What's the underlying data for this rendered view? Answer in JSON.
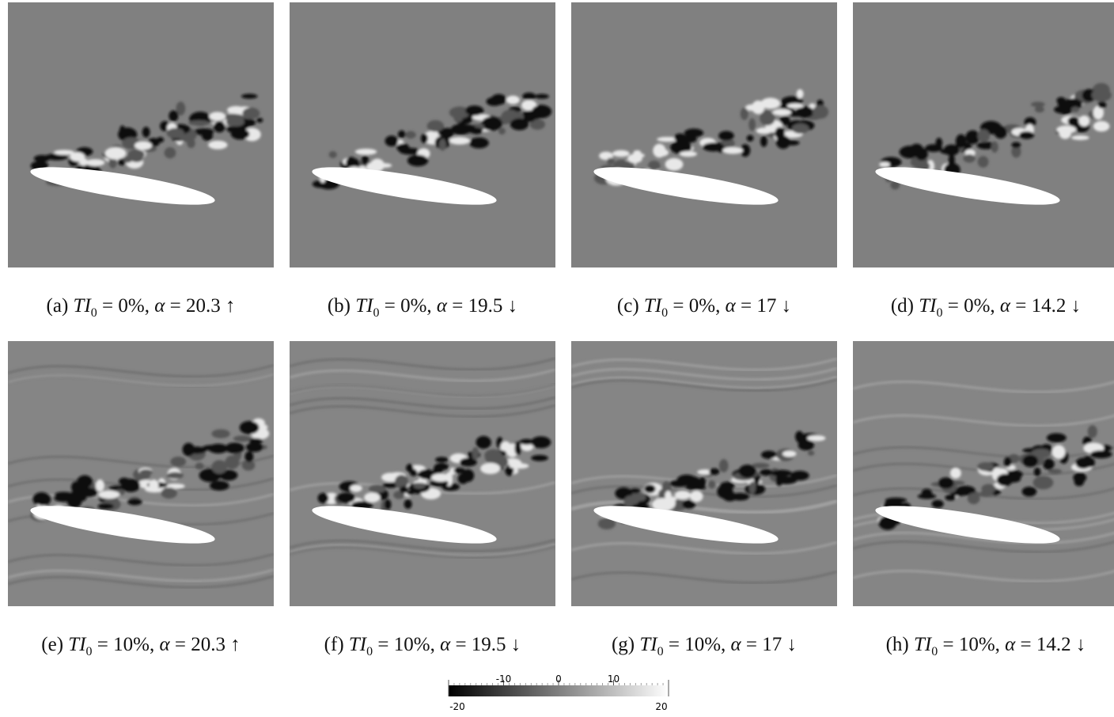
{
  "panels": [
    {
      "label": "(a)",
      "ti": "TI",
      "ti_sub": "0",
      "ti_text": " = 0%, ",
      "alpha": "α",
      "alpha_text": " = 20.3 ↑"
    },
    {
      "label": "(b)",
      "ti": "TI",
      "ti_sub": "0",
      "ti_text": " = 0%, ",
      "alpha": "α",
      "alpha_text": " = 19.5 ↓"
    },
    {
      "label": "(c)",
      "ti": "TI",
      "ti_sub": "0",
      "ti_text": " = 0%, ",
      "alpha": "α",
      "alpha_text": " = 17 ↓"
    },
    {
      "label": "(d)",
      "ti": "TI",
      "ti_sub": "0",
      "ti_text": " = 0%, ",
      "alpha": "α",
      "alpha_text": " = 14.2 ↓"
    },
    {
      "label": "(e)",
      "ti": "TI",
      "ti_sub": "0",
      "ti_text": " = 10%, ",
      "alpha": "α",
      "alpha_text": " = 20.3 ↑"
    },
    {
      "label": "(f)",
      "ti": "TI",
      "ti_sub": "0",
      "ti_text": " = 10%, ",
      "alpha": "α",
      "alpha_text": " = 19.5 ↓"
    },
    {
      "label": "(g)",
      "ti": "TI",
      "ti_sub": "0",
      "ti_text": " = 10%, ",
      "alpha": "α",
      "alpha_text": " = 17 ↓"
    },
    {
      "label": "(h)",
      "ti": "TI",
      "ti_sub": "0",
      "ti_text": " = 10%, ",
      "alpha": "α",
      "alpha_text": " = 14.2 ↓"
    }
  ],
  "colorbar": {
    "range": [
      -20,
      20
    ],
    "ticks": [
      -10,
      0,
      10
    ]
  }
}
